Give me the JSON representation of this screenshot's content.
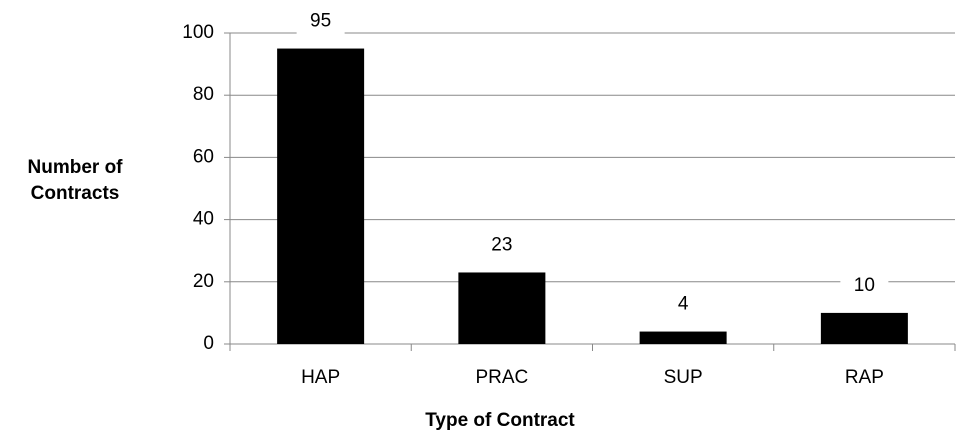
{
  "chart_data": {
    "type": "bar",
    "categories": [
      "HAP",
      "PRAC",
      "SUP",
      "RAP"
    ],
    "values": [
      95,
      23,
      4,
      10
    ],
    "color": "#000000",
    "y_label": "Number of Contracts",
    "x_label": "Type of Contract",
    "ylim": [
      0,
      100
    ],
    "yticks": [
      0,
      20,
      40,
      60,
      80,
      100
    ],
    "grid": true
  }
}
